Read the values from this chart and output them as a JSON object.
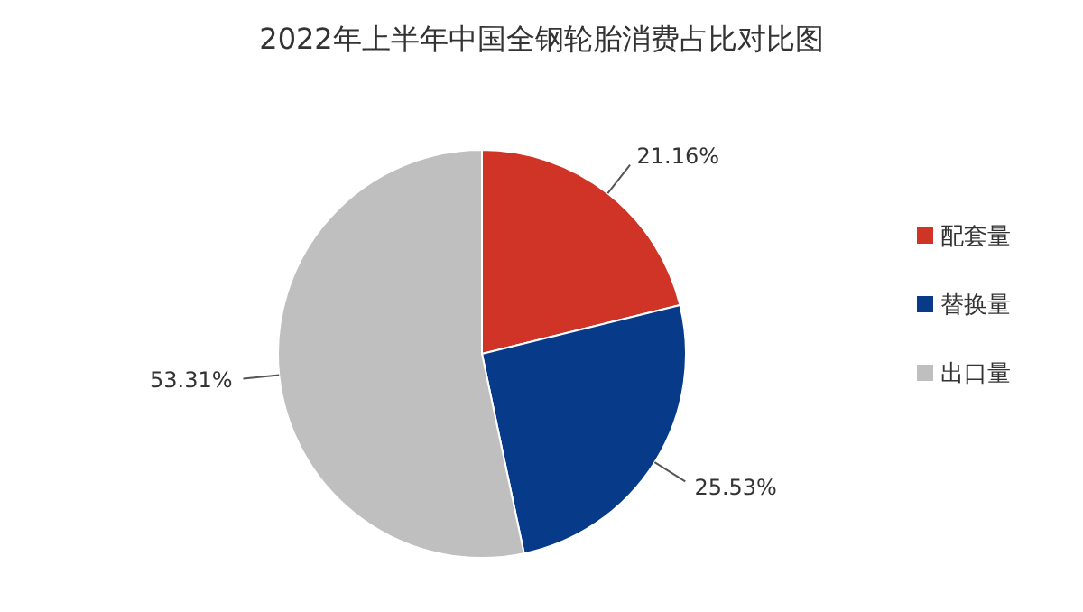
{
  "chart_data": {
    "type": "pie",
    "title": "2022年上半年中国全钢轮胎消费占比对比图",
    "categories": [
      "配套量",
      "替换量",
      "出口量"
    ],
    "values": [
      21.16,
      25.53,
      53.31
    ],
    "value_labels": [
      "21.16%",
      "25.53%",
      "53.31%"
    ],
    "colors": [
      "#d03427",
      "#083a8a",
      "#bfbfbf"
    ],
    "legend": "right"
  }
}
